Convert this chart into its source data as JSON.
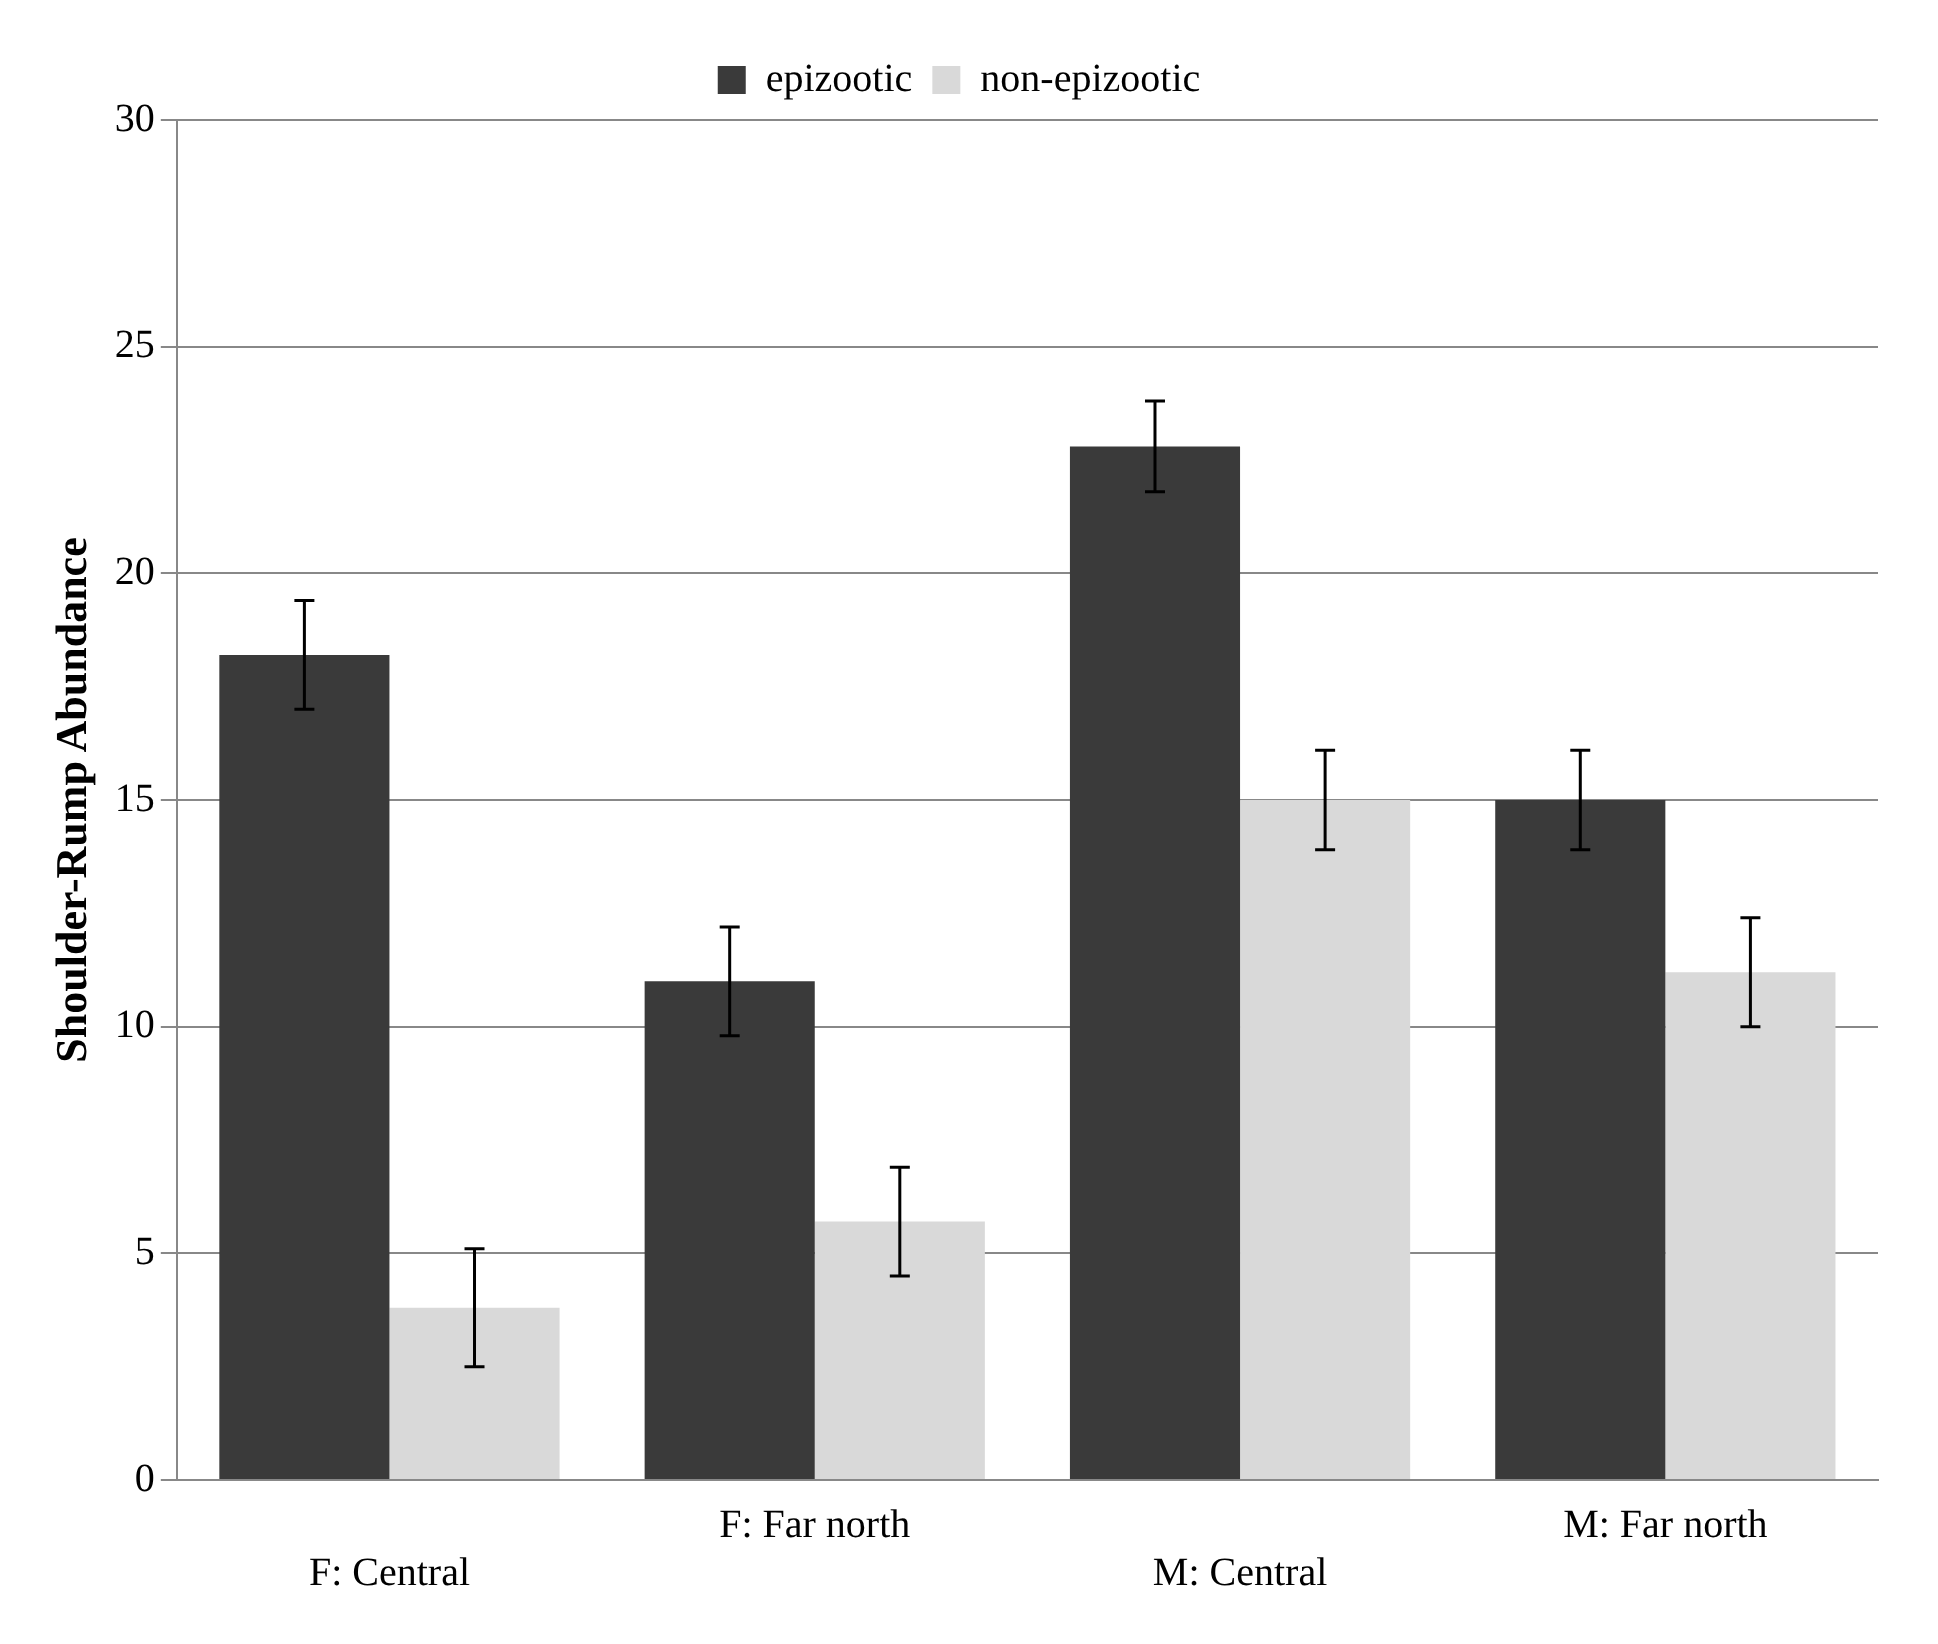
{
  "chart_data": {
    "type": "bar",
    "ylabel": "Shoulder-Rump Abundance",
    "categories": [
      "F: Central",
      "F: Far north",
      "M: Central",
      "M: Far north"
    ],
    "series": [
      {
        "name": "epizootic",
        "color": "#3a3a3a",
        "values": [
          18.2,
          11.0,
          22.8,
          15.0
        ],
        "errors": [
          1.2,
          1.2,
          1.0,
          1.1
        ]
      },
      {
        "name": "non-epizootic",
        "color": "#d9d9d9",
        "values": [
          3.8,
          5.7,
          15.0,
          11.2
        ],
        "errors": [
          1.3,
          1.2,
          1.1,
          1.2
        ]
      }
    ],
    "ylim": [
      0,
      30
    ],
    "yticks": [
      0,
      5,
      10,
      15,
      20,
      25,
      30
    ],
    "grid": "y",
    "legend": "top"
  }
}
